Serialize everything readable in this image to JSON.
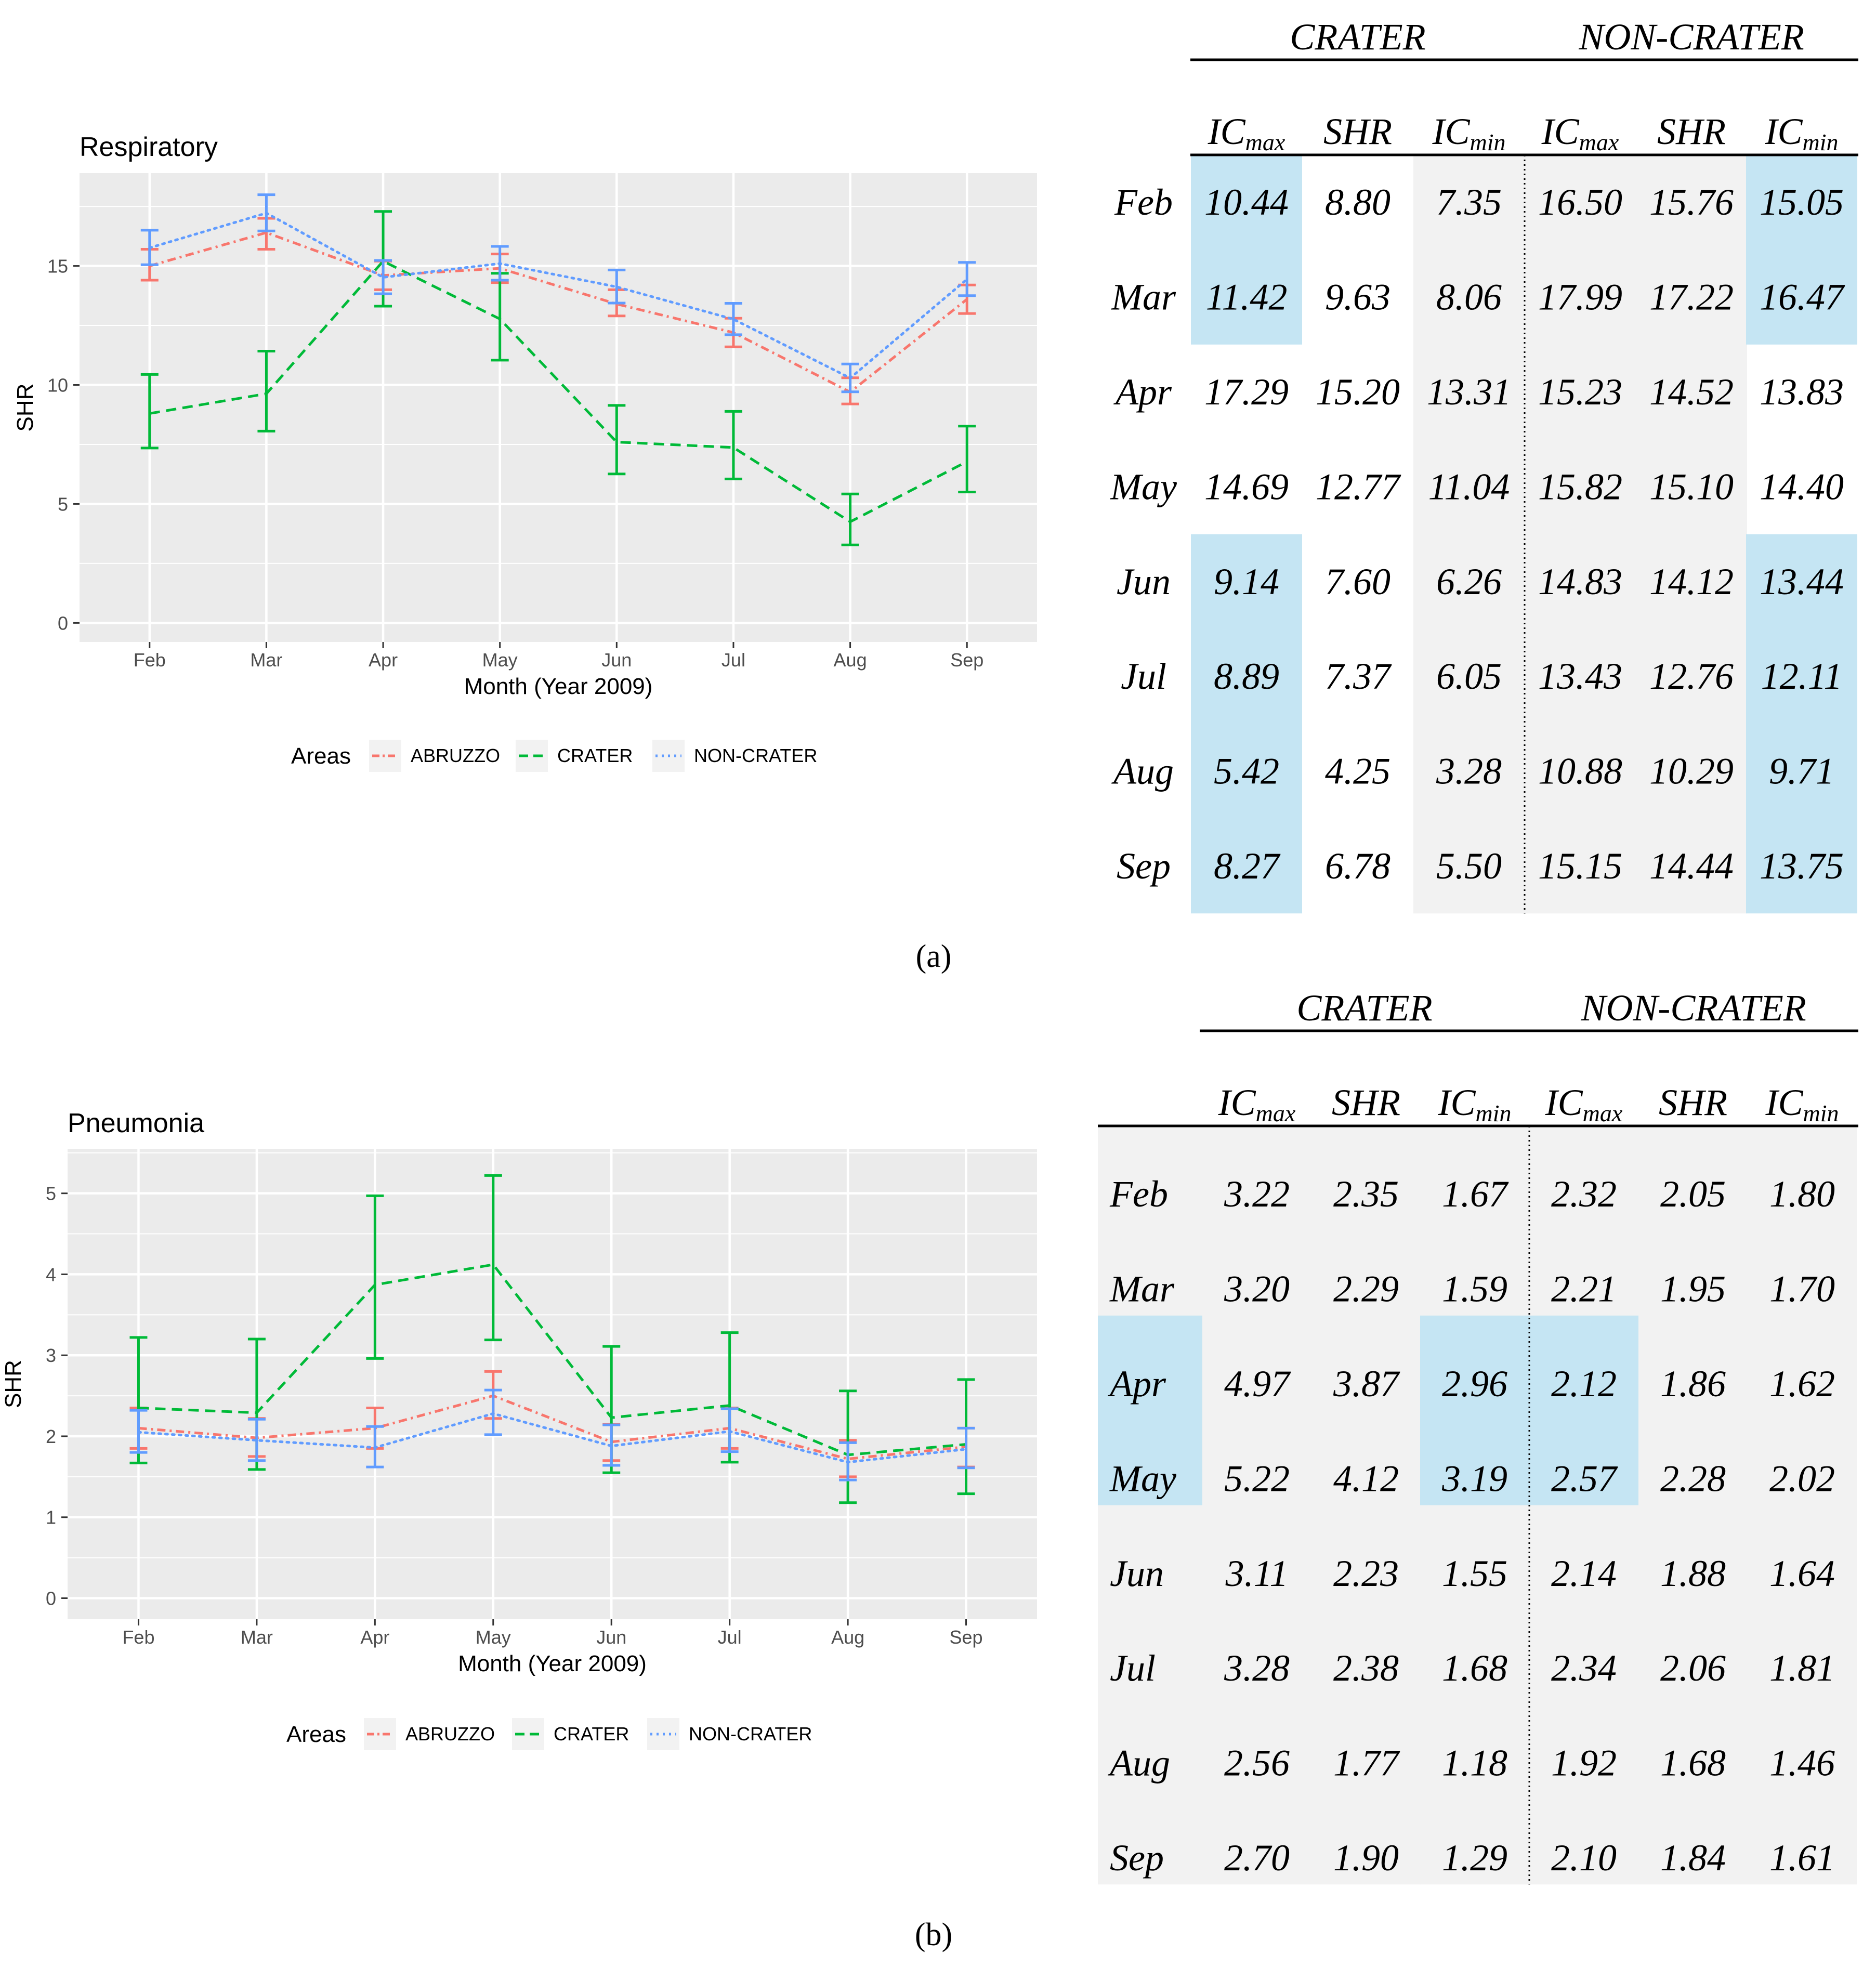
{
  "colors": {
    "abruzzo": "#F8766D",
    "crater": "#00BA38",
    "noncrater": "#619CFF",
    "panel_bg": "#EBEBEB",
    "grid": "#FFFFFF",
    "table_gray": "#F2F2F2",
    "table_blue": "#C5E5F3"
  },
  "panel_labels": [
    "(a)",
    "(b)"
  ],
  "chart_data": [
    {
      "type": "line",
      "title": "Respiratory",
      "xlabel": "Month (Year 2009)",
      "ylabel": "SHR",
      "categories": [
        "Feb",
        "Mar",
        "Apr",
        "May",
        "Jun",
        "Jul",
        "Aug",
        "Sep"
      ],
      "ylim": [
        -0.8,
        18.9
      ],
      "yticks": [
        0,
        5,
        10,
        15
      ],
      "ytick_labels": [
        "0",
        "5",
        "10",
        "15"
      ],
      "grid": true,
      "legend": {
        "title": "Areas",
        "position": "bottom",
        "labels": [
          "ABRUZZO",
          "CRATER",
          "NON-CRATER"
        ]
      },
      "series": [
        {
          "name": "ABRUZZO",
          "key": "abruzzo",
          "dash": "dashdot",
          "values": [
            15.0,
            16.4,
            14.6,
            14.9,
            13.4,
            12.2,
            9.7,
            13.6
          ],
          "lower": [
            14.4,
            15.7,
            14.0,
            14.3,
            12.9,
            11.6,
            9.2,
            13.0
          ],
          "upper": [
            15.7,
            17.0,
            15.2,
            15.5,
            14.0,
            12.8,
            10.3,
            14.2
          ]
        },
        {
          "name": "CRATER",
          "key": "crater",
          "dash": "dashed",
          "values": [
            8.8,
            9.63,
            15.2,
            12.77,
            7.6,
            7.37,
            4.25,
            6.78
          ],
          "lower": [
            7.35,
            8.06,
            13.31,
            11.04,
            6.26,
            6.05,
            3.28,
            5.5
          ],
          "upper": [
            10.44,
            11.42,
            17.29,
            14.69,
            9.14,
            8.89,
            5.42,
            8.27
          ]
        },
        {
          "name": "NON-CRATER",
          "key": "noncrater",
          "dash": "dotted",
          "values": [
            15.76,
            17.22,
            14.52,
            15.1,
            14.12,
            12.76,
            10.29,
            14.44
          ],
          "lower": [
            15.05,
            16.47,
            13.83,
            14.4,
            13.44,
            12.11,
            9.71,
            13.75
          ],
          "upper": [
            16.5,
            17.99,
            15.23,
            15.82,
            14.83,
            13.43,
            10.88,
            15.15
          ]
        }
      ]
    },
    {
      "type": "line",
      "title": "Pneumonia",
      "xlabel": "Month (Year 2009)",
      "ylabel": "SHR",
      "categories": [
        "Feb",
        "Mar",
        "Apr",
        "May",
        "Jun",
        "Jul",
        "Aug",
        "Sep"
      ],
      "ylim": [
        -0.26,
        5.55
      ],
      "yticks": [
        0,
        1,
        2,
        3,
        4,
        5
      ],
      "ytick_labels": [
        "0",
        "1",
        "2",
        "3",
        "4",
        "5"
      ],
      "grid": true,
      "legend": {
        "title": "Areas",
        "position": "bottom",
        "labels": [
          "ABRUZZO",
          "CRATER",
          "NON-CRATER"
        ]
      },
      "series": [
        {
          "name": "ABRUZZO",
          "key": "abruzzo",
          "dash": "dashdot",
          "values": [
            2.1,
            1.98,
            2.1,
            2.5,
            1.93,
            2.1,
            1.72,
            1.87
          ],
          "lower": [
            1.85,
            1.75,
            1.85,
            2.22,
            1.7,
            1.85,
            1.5,
            1.62
          ],
          "upper": [
            2.35,
            2.22,
            2.35,
            2.8,
            2.15,
            2.35,
            1.95,
            2.1
          ]
        },
        {
          "name": "CRATER",
          "key": "crater",
          "dash": "dashed",
          "values": [
            2.35,
            2.29,
            3.87,
            4.12,
            2.23,
            2.38,
            1.77,
            1.9
          ],
          "lower": [
            1.67,
            1.59,
            2.96,
            3.19,
            1.55,
            1.68,
            1.18,
            1.29
          ],
          "upper": [
            3.22,
            3.2,
            4.97,
            5.22,
            3.11,
            3.28,
            2.56,
            2.7
          ]
        },
        {
          "name": "NON-CRATER",
          "key": "noncrater",
          "dash": "dotted",
          "values": [
            2.05,
            1.95,
            1.86,
            2.28,
            1.88,
            2.06,
            1.68,
            1.84
          ],
          "lower": [
            1.8,
            1.7,
            1.62,
            2.02,
            1.64,
            1.81,
            1.46,
            1.61
          ],
          "upper": [
            2.32,
            2.21,
            2.12,
            2.57,
            2.14,
            2.34,
            1.92,
            2.1
          ]
        }
      ]
    }
  ],
  "tables": [
    {
      "group_headers": [
        "CRATER",
        "NON-CRATER"
      ],
      "columns": [
        {
          "main": "IC",
          "sub": "max"
        },
        {
          "main": "SHR",
          "sub": ""
        },
        {
          "main": "IC",
          "sub": "min"
        },
        {
          "main": "IC",
          "sub": "max"
        },
        {
          "main": "SHR",
          "sub": ""
        },
        {
          "main": "IC",
          "sub": "min"
        }
      ],
      "rows": [
        {
          "month": "Feb",
          "values": [
            "10.44",
            "8.80",
            "7.35",
            "16.50",
            "15.76",
            "15.05"
          ]
        },
        {
          "month": "Mar",
          "values": [
            "11.42",
            "9.63",
            "8.06",
            "17.99",
            "17.22",
            "16.47"
          ]
        },
        {
          "month": "Apr",
          "values": [
            "17.29",
            "15.20",
            "13.31",
            "15.23",
            "14.52",
            "13.83"
          ]
        },
        {
          "month": "May",
          "values": [
            "14.69",
            "12.77",
            "11.04",
            "15.82",
            "15.10",
            "14.40"
          ]
        },
        {
          "month": "Jun",
          "values": [
            "9.14",
            "7.60",
            "6.26",
            "14.83",
            "14.12",
            "13.44"
          ]
        },
        {
          "month": "Jul",
          "values": [
            "8.89",
            "7.37",
            "6.05",
            "13.43",
            "12.76",
            "12.11"
          ]
        },
        {
          "month": "Aug",
          "values": [
            "5.42",
            "4.25",
            "3.28",
            "10.88",
            "10.29",
            "9.71"
          ]
        },
        {
          "month": "Sep",
          "values": [
            "8.27",
            "6.78",
            "5.50",
            "15.15",
            "14.44",
            "13.75"
          ]
        }
      ]
    },
    {
      "group_headers": [
        "CRATER",
        "NON-CRATER"
      ],
      "columns": [
        {
          "main": "IC",
          "sub": "max"
        },
        {
          "main": "SHR",
          "sub": ""
        },
        {
          "main": "IC",
          "sub": "min"
        },
        {
          "main": "IC",
          "sub": "max"
        },
        {
          "main": "SHR",
          "sub": ""
        },
        {
          "main": "IC",
          "sub": "min"
        }
      ],
      "rows": [
        {
          "month": "Feb",
          "values": [
            "3.22",
            "2.35",
            "1.67",
            "2.32",
            "2.05",
            "1.80"
          ]
        },
        {
          "month": "Mar",
          "values": [
            "3.20",
            "2.29",
            "1.59",
            "2.21",
            "1.95",
            "1.70"
          ]
        },
        {
          "month": "Apr",
          "values": [
            "4.97",
            "3.87",
            "2.96",
            "2.12",
            "1.86",
            "1.62"
          ]
        },
        {
          "month": "May",
          "values": [
            "5.22",
            "4.12",
            "3.19",
            "2.57",
            "2.28",
            "2.02"
          ]
        },
        {
          "month": "Jun",
          "values": [
            "3.11",
            "2.23",
            "1.55",
            "2.14",
            "1.88",
            "1.64"
          ]
        },
        {
          "month": "Jul",
          "values": [
            "3.28",
            "2.38",
            "1.68",
            "2.34",
            "2.06",
            "1.81"
          ]
        },
        {
          "month": "Aug",
          "values": [
            "2.56",
            "1.77",
            "1.18",
            "1.92",
            "1.68",
            "1.46"
          ]
        },
        {
          "month": "Sep",
          "values": [
            "2.70",
            "1.90",
            "1.29",
            "2.10",
            "1.84",
            "1.61"
          ]
        }
      ]
    }
  ]
}
